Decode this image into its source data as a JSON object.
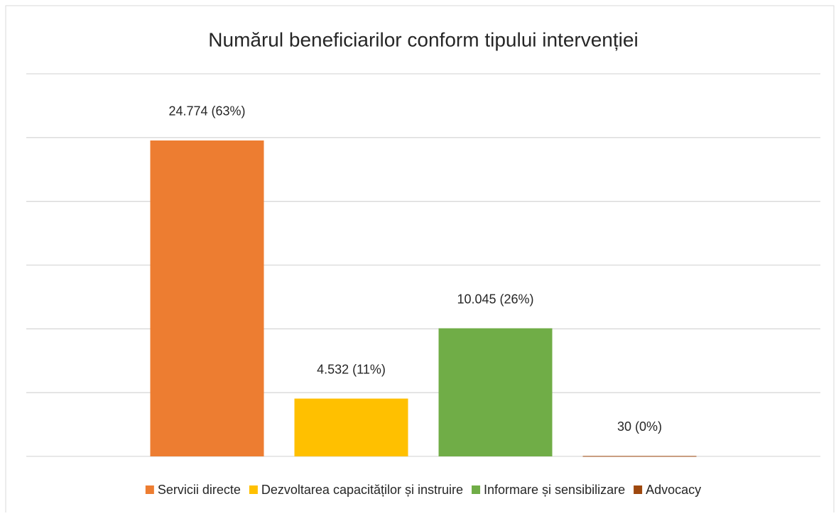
{
  "chart_data": {
    "type": "bar",
    "title": "Numărul beneficiarilor conform tipului intervenției",
    "categories": [
      null
    ],
    "series": [
      {
        "name": "Servicii directe",
        "color": "#ED7D31",
        "values": [
          24774
        ],
        "value_labels": [
          "24.774 (63%)"
        ]
      },
      {
        "name": "Dezvoltarea capacităților și instruire",
        "color": "#FFC000",
        "values": [
          4532
        ],
        "value_labels": [
          "4.532 (11%)"
        ]
      },
      {
        "name": "Informare și sensibilizare",
        "color": "#70AD47",
        "values": [
          10045
        ],
        "value_labels": [
          "10.045 (26%)"
        ]
      },
      {
        "name": "Advocacy",
        "color": "#9E480E",
        "values": [
          30
        ],
        "value_labels": [
          "30 (0%)"
        ]
      }
    ],
    "ylim": [
      0,
      30000
    ],
    "yticks": [
      0,
      5000,
      10000,
      15000,
      20000,
      25000,
      30000
    ],
    "grid": true,
    "legend": "bottom"
  }
}
